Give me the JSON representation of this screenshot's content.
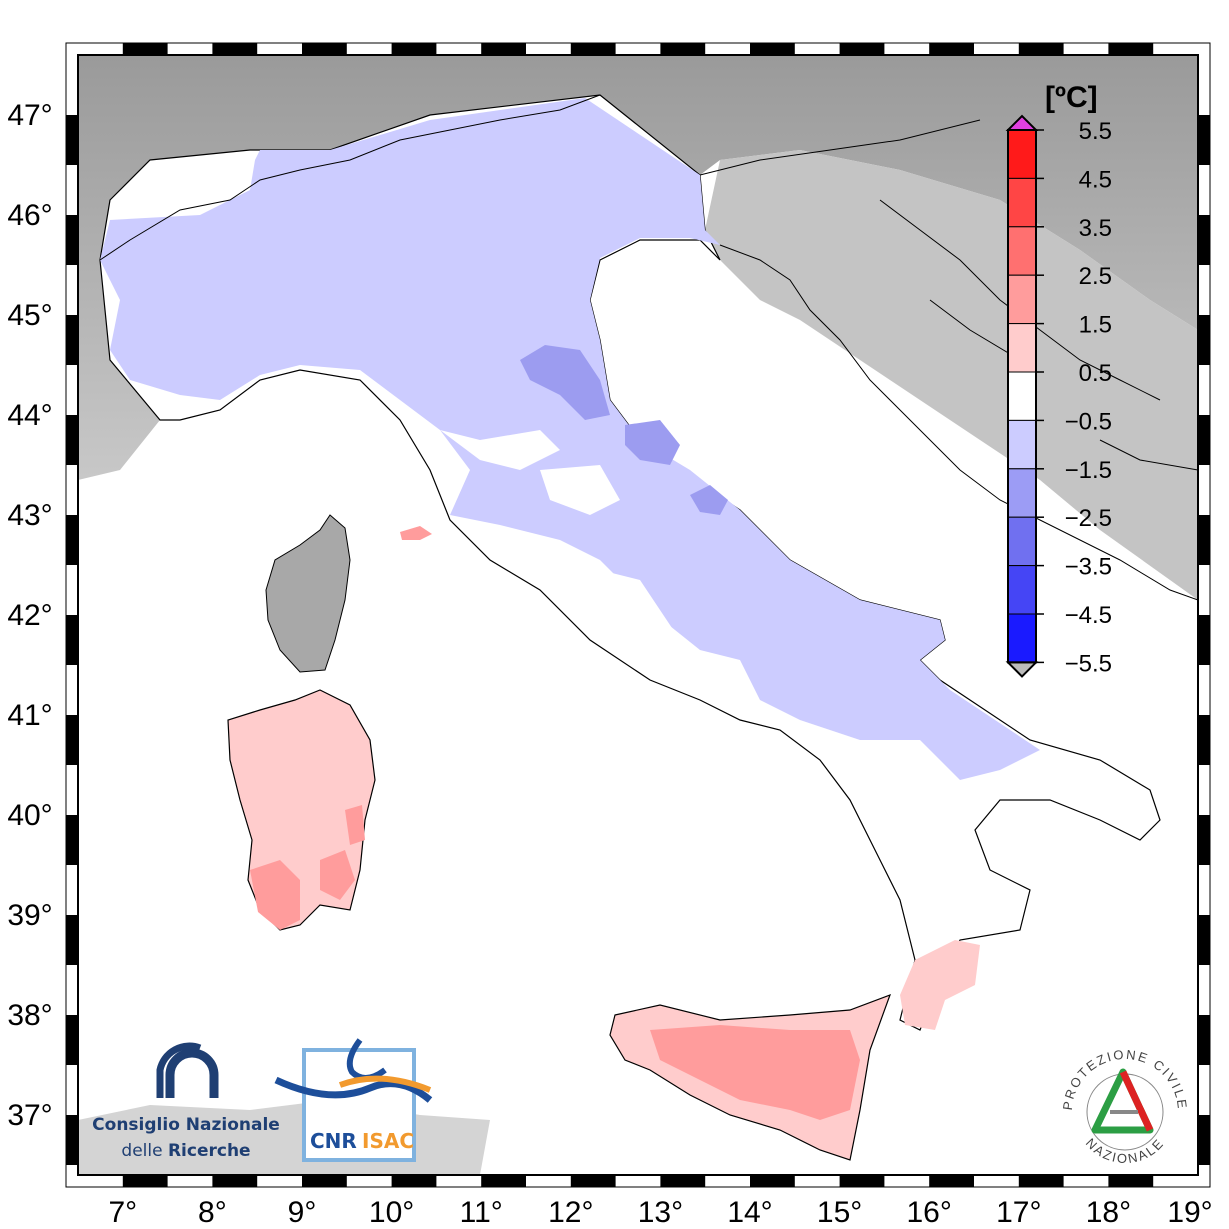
{
  "map": {
    "lon_labels": [
      "7°",
      "8°",
      "9°",
      "10°",
      "11°",
      "12°",
      "13°",
      "14°",
      "15°",
      "16°",
      "17°",
      "18°",
      "19°"
    ],
    "lat_labels": [
      "47°",
      "46°",
      "45°",
      "44°",
      "43°",
      "42°",
      "41°",
      "40°",
      "39°",
      "38°",
      "37°"
    ],
    "lon_range": [
      6.5,
      19.0
    ],
    "lat_range": [
      36.4,
      47.6
    ]
  },
  "legend": {
    "unit": "[ºC]",
    "ticks": [
      "5.5",
      "4.5",
      "3.5",
      "2.5",
      "1.5",
      "0.5",
      "−0.5",
      "−1.5",
      "−2.5",
      "−3.5",
      "−4.5",
      "−5.5"
    ],
    "colors": [
      "#ff1a1a",
      "#ff4545",
      "#ff7070",
      "#ff9c9c",
      "#ffcccc",
      "#ffffff",
      "#ccccff",
      "#9c9cf5",
      "#7070f0",
      "#4545f5",
      "#1a1aff"
    ],
    "top_arrow_color": "#e040e0",
    "bottom_arrow_color": "#bbbbbb"
  },
  "logos": {
    "cnr_line1": "Consiglio Nazionale",
    "cnr_line2_a": "delle ",
    "cnr_line2_b": "Ricerche",
    "isac_left": "CNR",
    "isac_right": "ISAC",
    "protezione_top": "PROTEZIONE CIVILE",
    "protezione_bottom": "NAZIONALE"
  }
}
